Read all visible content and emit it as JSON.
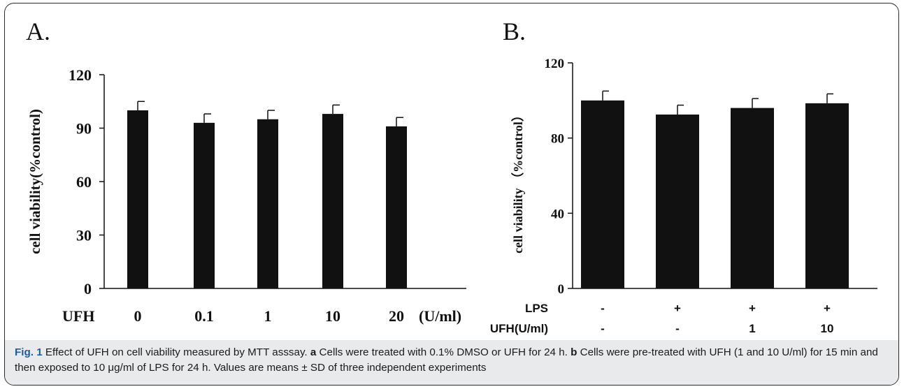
{
  "panels": {
    "a": {
      "letter": "A."
    },
    "b": {
      "letter": "B."
    }
  },
  "chart_data": [
    {
      "type": "bar",
      "ylabel": "cell viability(%control)",
      "ylim": [
        0,
        120
      ],
      "yticks": [
        0,
        30,
        60,
        90,
        120
      ],
      "xlabel_left": "UFH",
      "xlabel_right": "(U/ml)",
      "categories": [
        "0",
        "0.1",
        "1",
        "10",
        "20"
      ],
      "values": [
        100,
        93,
        95,
        98,
        91
      ],
      "errors": [
        5,
        5,
        5,
        5,
        5
      ],
      "bar_color": "#111111"
    },
    {
      "type": "bar",
      "ylabel": "cell viability （%control）",
      "ylim": [
        0,
        120
      ],
      "yticks": [
        0,
        40,
        80,
        120
      ],
      "row_labels": [
        "LPS",
        "UFH(U/ml)"
      ],
      "rows": [
        [
          "-",
          "+",
          "+",
          "+"
        ],
        [
          "-",
          "-",
          "1",
          "10"
        ]
      ],
      "values": [
        100,
        92.5,
        96,
        98.5
      ],
      "errors": [
        5,
        5,
        5,
        5
      ],
      "bar_color": "#111111"
    }
  ],
  "caption": {
    "fig_label": "Fig. 1",
    "text_1": " Effect of UFH on cell viability measured by MTT asssay. ",
    "a_label": "a",
    "text_2": " Cells were treated with 0.1% DMSO or UFH for 24 h. ",
    "b_label": "b",
    "text_3": " Cells were pre-treated with UFH (1 and 10 U/ml) for 15 min and then exposed to 10 μg/ml of LPS for 24 h. Values are means ± SD of three independent experiments"
  }
}
